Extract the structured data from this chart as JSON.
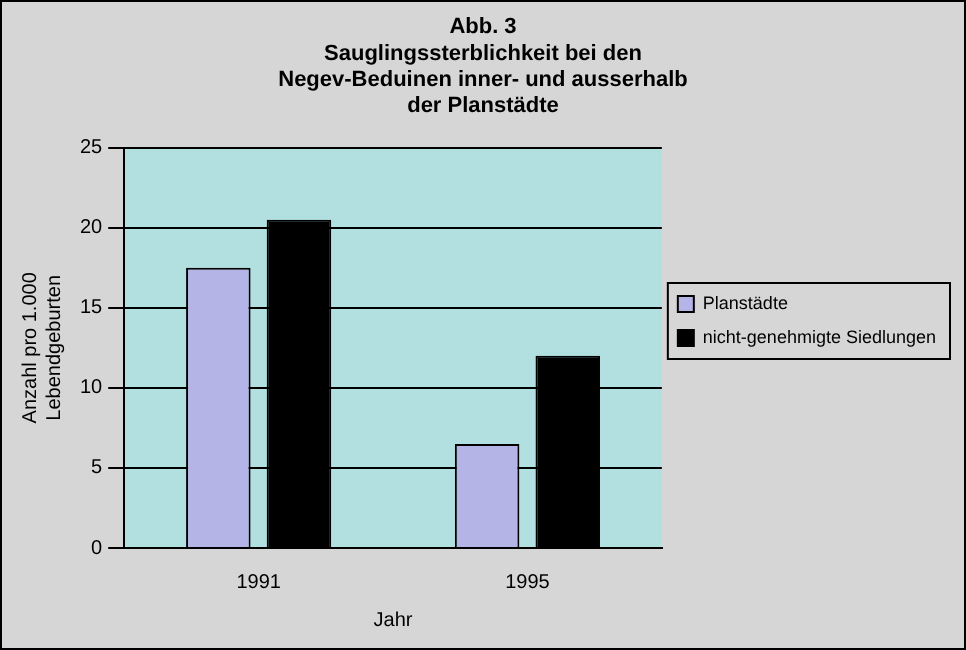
{
  "chart_data": {
    "type": "bar",
    "title": "Abb. 3",
    "subtitle": "Sauglingssterblichkeit bei den Negev-Beduinen inner- und ausserhalb der Planstädte",
    "xlabel": "Jahr",
    "ylabel": "Anzahl pro 1.000 Lebendgeburten",
    "categories": [
      "1991",
      "1995"
    ],
    "series": [
      {
        "name": "Planstädte",
        "color": "#b4b4e6",
        "values": [
          17.5,
          6.5
        ]
      },
      {
        "name": "nicht-genehmigte Siedlungen",
        "color": "#000000",
        "values": [
          20.5,
          12
        ]
      }
    ],
    "ylim": [
      0,
      25
    ],
    "yticks": [
      0,
      5,
      10,
      15,
      20,
      25
    ],
    "grid": "y",
    "legend": "right"
  }
}
